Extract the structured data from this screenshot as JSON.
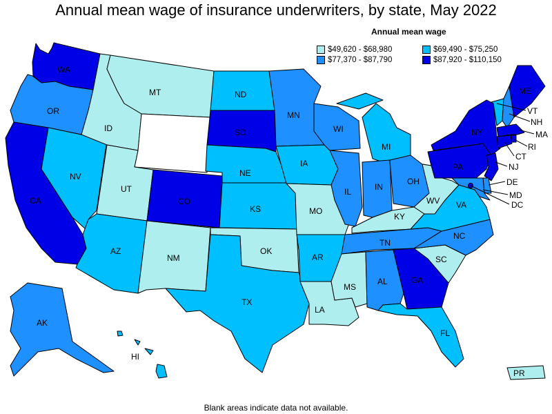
{
  "title": "Annual mean wage of insurance underwriters, by state, May 2022",
  "legend": {
    "title": "Annual mean wage",
    "items": [
      {
        "label": "$49,620 - $68,980",
        "color": "#afeeee"
      },
      {
        "label": "$69,490 - $75,250",
        "color": "#00bfff"
      },
      {
        "label": "$77,370 - $87,790",
        "color": "#1e90ff"
      },
      {
        "label": "$87,920 - $110,150",
        "color": "#0000e6"
      }
    ]
  },
  "colors": {
    "tier1": "#afeeee",
    "tier2": "#00bfff",
    "tier3": "#1e90ff",
    "tier4": "#0000e6",
    "nodata": "#ffffff"
  },
  "states": {
    "WA": "tier4",
    "OR": "tier3",
    "CA": "tier4",
    "NV": "tier2",
    "ID": "tier1",
    "MT": "tier1",
    "WY": "nodata",
    "UT": "tier1",
    "AZ": "tier2",
    "CO": "tier4",
    "NM": "tier1",
    "ND": "tier2",
    "SD": "tier4",
    "NE": "tier2",
    "KS": "tier2",
    "OK": "tier1",
    "TX": "tier2",
    "MN": "tier3",
    "IA": "tier2",
    "MO": "tier1",
    "AR": "tier2",
    "LA": "tier1",
    "WI": "tier3",
    "IL": "tier3",
    "MI": "tier2",
    "IN": "tier3",
    "OH": "tier3",
    "KY": "tier1",
    "TN": "tier3",
    "MS": "tier1",
    "AL": "tier3",
    "GA": "tier4",
    "FL": "tier2",
    "SC": "tier1",
    "NC": "tier3",
    "VA": "tier2",
    "WV": "tier1",
    "PA": "tier4",
    "NY": "tier4",
    "VT": "tier2",
    "NH": "tier3",
    "ME": "tier4",
    "MA": "tier4",
    "RI": "tier4",
    "CT": "tier4",
    "NJ": "tier4",
    "DE": "tier3",
    "MD": "tier3",
    "DC": "tier4",
    "AK": "tier3",
    "HI": "tier2",
    "PR": "tier1"
  },
  "labels": {
    "WA": "WA",
    "OR": "OR",
    "CA": "CA",
    "NV": "NV",
    "ID": "ID",
    "MT": "MT",
    "UT": "UT",
    "AZ": "AZ",
    "CO": "CO",
    "NM": "NM",
    "ND": "ND",
    "SD": "SD",
    "NE": "NE",
    "KS": "KS",
    "OK": "OK",
    "TX": "TX",
    "MN": "MN",
    "IA": "IA",
    "MO": "MO",
    "AR": "AR",
    "LA": "LA",
    "WI": "WI",
    "IL": "IL",
    "MI": "MI",
    "IN": "IN",
    "OH": "OH",
    "KY": "KY",
    "TN": "TN",
    "MS": "MS",
    "AL": "AL",
    "GA": "GA",
    "FL": "FL",
    "SC": "SC",
    "NC": "NC",
    "VA": "VA",
    "WV": "WV",
    "PA": "PA",
    "NY": "NY",
    "VT": "VT",
    "NH": "NH",
    "ME": "ME",
    "MA": "MA",
    "RI": "RI",
    "CT": "CT",
    "NJ": "NJ",
    "DE": "DE",
    "MD": "MD",
    "DC": "DC",
    "AK": "AK",
    "HI": "HI",
    "PR": "PR"
  },
  "footer": "Blank areas indicate data not available."
}
